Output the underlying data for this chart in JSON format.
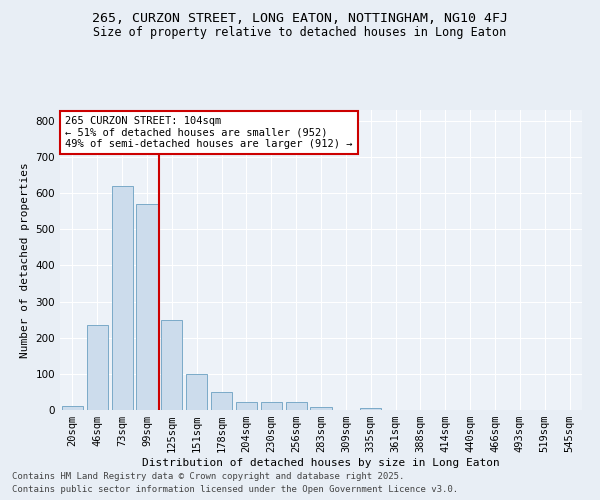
{
  "title_line1": "265, CURZON STREET, LONG EATON, NOTTINGHAM, NG10 4FJ",
  "title_line2": "Size of property relative to detached houses in Long Eaton",
  "xlabel": "Distribution of detached houses by size in Long Eaton",
  "ylabel": "Number of detached properties",
  "bar_color": "#ccdcec",
  "bar_edge_color": "#7aaac8",
  "categories": [
    "20sqm",
    "46sqm",
    "73sqm",
    "99sqm",
    "125sqm",
    "151sqm",
    "178sqm",
    "204sqm",
    "230sqm",
    "256sqm",
    "283sqm",
    "309sqm",
    "335sqm",
    "361sqm",
    "388sqm",
    "414sqm",
    "440sqm",
    "466sqm",
    "493sqm",
    "519sqm",
    "545sqm"
  ],
  "values": [
    10,
    235,
    620,
    570,
    250,
    100,
    50,
    22,
    22,
    22,
    8,
    0,
    5,
    0,
    0,
    0,
    0,
    0,
    0,
    0,
    0
  ],
  "ylim": [
    0,
    830
  ],
  "yticks": [
    0,
    100,
    200,
    300,
    400,
    500,
    600,
    700,
    800
  ],
  "vline_x": 3.5,
  "vline_color": "#cc0000",
  "annotation_text": "265 CURZON STREET: 104sqm\n← 51% of detached houses are smaller (952)\n49% of semi-detached houses are larger (912) →",
  "annotation_box_color": "#ffffff",
  "annotation_box_edge": "#cc0000",
  "footer_line1": "Contains HM Land Registry data © Crown copyright and database right 2025.",
  "footer_line2": "Contains public sector information licensed under the Open Government Licence v3.0.",
  "background_color": "#e8eef5",
  "plot_bg_color": "#edf2f8",
  "grid_color": "#ffffff",
  "title_fontsize": 9.5,
  "subtitle_fontsize": 8.5,
  "axis_label_fontsize": 8,
  "tick_fontsize": 7.5,
  "annot_fontsize": 7.5,
  "footer_fontsize": 6.5
}
